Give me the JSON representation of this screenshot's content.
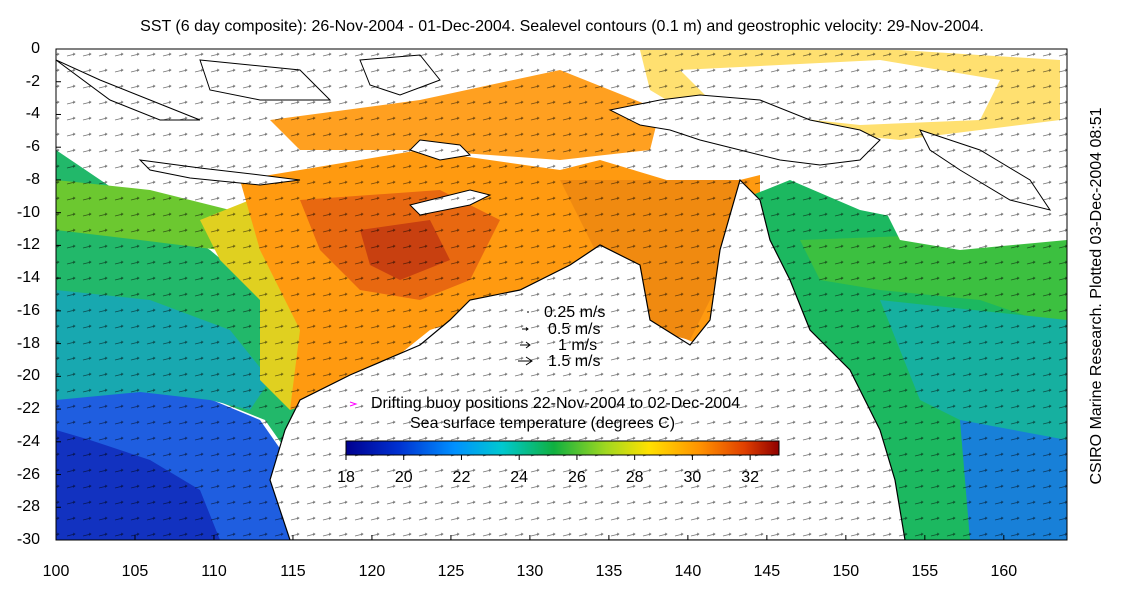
{
  "title": "SST (6 day composite): 26-Nov-2004 - 01-Dec-2004. Sealevel contours (0.1 m) and geostrophic velocity: 29-Nov-2004.",
  "credit": "CSIRO Marine Research. Plotted 03-Dec-2004 08:51",
  "y_axis_ticks": [
    "0",
    "-2",
    "-4",
    "-6",
    "-8",
    "-10",
    "-12",
    "-14",
    "-16",
    "-18",
    "-20",
    "-22",
    "-24",
    "-26",
    "-28",
    "-30"
  ],
  "x_axis_ticks": [
    "100",
    "105",
    "110",
    "115",
    "120",
    "125",
    "130",
    "135",
    "140",
    "145",
    "150",
    "155",
    "160"
  ],
  "velocity_legend": [
    "0.25 m/s",
    "0.5 m/s",
    "1 m/s",
    "1.5 m/s"
  ],
  "buoy_legend": "Drifting buoy positions 22-Nov-2004 to 02-Dec-2004",
  "colorbar": {
    "title": "Sea surface temperature (degrees C)",
    "ticks": [
      "18",
      "20",
      "22",
      "24",
      "26",
      "28",
      "30",
      "32"
    ],
    "range": [
      18,
      33
    ],
    "colors": [
      "#00008f",
      "#0040ff",
      "#00c0ff",
      "#00d0a0",
      "#20c020",
      "#c0e020",
      "#ffd000",
      "#ff8000",
      "#d04000",
      "#800000"
    ]
  },
  "map": {
    "lon_range": [
      100,
      164
    ],
    "lat_range": [
      -30,
      0
    ],
    "buoy_color": "#ff00ff"
  }
}
